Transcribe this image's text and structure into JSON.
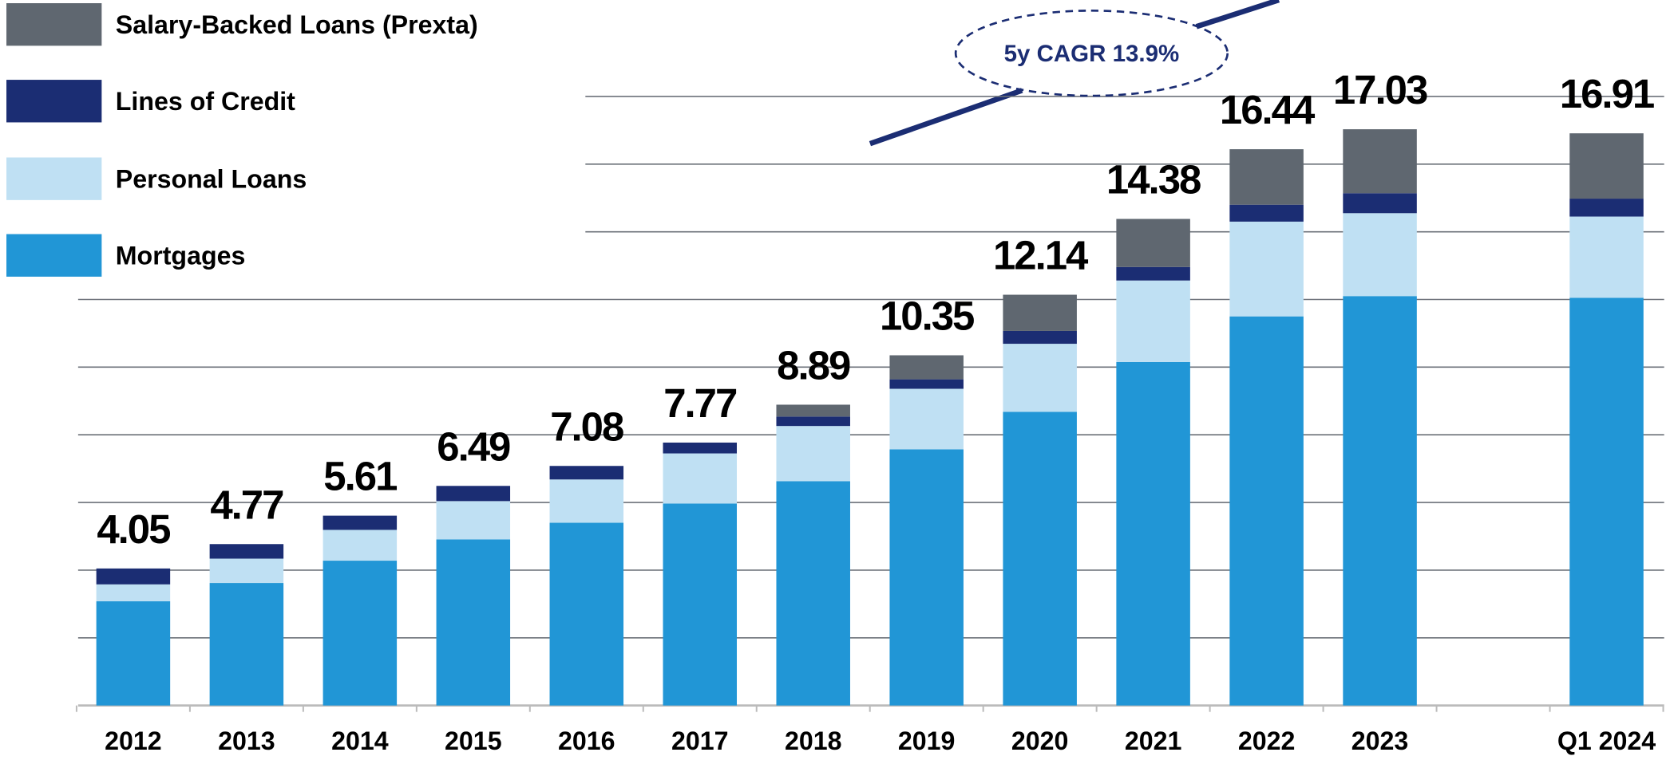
{
  "chart_data": {
    "type": "stacked_bar",
    "categories": [
      "2012",
      "2013",
      "2014",
      "2015",
      "2016",
      "2017",
      "2018",
      "2019",
      "2020",
      "2021",
      "2022",
      "2023",
      null,
      "Q1 2024"
    ],
    "series": [
      {
        "name": "Mortgages",
        "color": "#2196d6",
        "values": [
          3.08,
          3.62,
          4.28,
          4.91,
          5.4,
          5.97,
          6.63,
          7.57,
          8.68,
          10.15,
          11.5,
          12.1,
          null,
          12.05
        ]
      },
      {
        "name": "Personal Loans",
        "color": "#bfe0f3",
        "values": [
          0.5,
          0.72,
          0.91,
          1.13,
          1.28,
          1.48,
          1.63,
          1.79,
          2.01,
          2.41,
          2.8,
          2.45,
          null,
          2.4
        ]
      },
      {
        "name": "Lines of Credit",
        "color": "#1b2d73",
        "values": [
          0.47,
          0.43,
          0.42,
          0.45,
          0.4,
          0.32,
          0.28,
          0.28,
          0.38,
          0.4,
          0.5,
          0.59,
          null,
          0.53
        ]
      },
      {
        "name": "Salary-Backed Loans (Prexta)",
        "color": "#5f6770",
        "values": [
          0,
          0,
          0,
          0,
          0,
          0,
          0.35,
          0.71,
          1.07,
          1.42,
          1.64,
          1.89,
          null,
          1.93
        ]
      }
    ],
    "totals": [
      4.05,
      4.77,
      5.61,
      6.49,
      7.08,
      7.77,
      8.89,
      10.35,
      12.14,
      14.38,
      16.44,
      17.03,
      null,
      16.91
    ],
    "annotation": "5y CAGR 13.9%",
    "ylim": [
      0,
      20.85
    ],
    "yticks": [
      0,
      2,
      4,
      6,
      8,
      10,
      12,
      14,
      16,
      18
    ],
    "grid": true
  }
}
